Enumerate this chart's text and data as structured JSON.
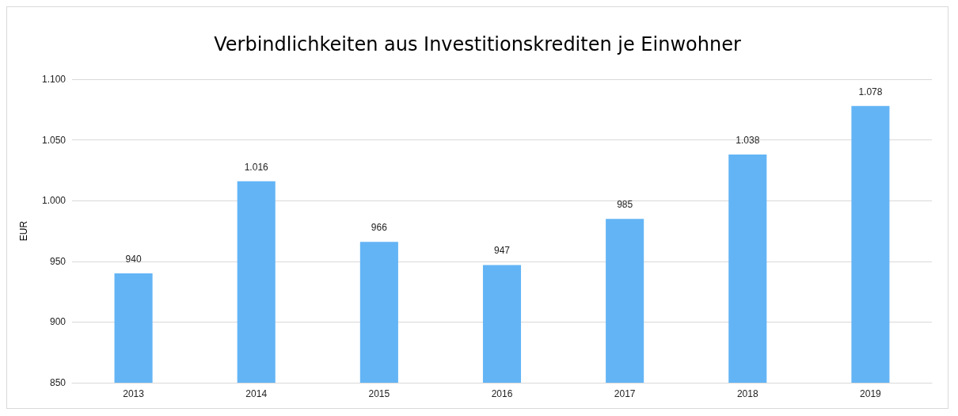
{
  "chart_data": {
    "type": "bar",
    "title": "Verbindlichkeiten aus Investitionskrediten je Einwohner",
    "ylabel": "EUR",
    "categories": [
      "2013",
      "2014",
      "2015",
      "2016",
      "2017",
      "2018",
      "2019"
    ],
    "values": [
      940,
      1016,
      966,
      947,
      985,
      1038,
      1078
    ],
    "value_labels": [
      "940",
      "1.016",
      "966",
      "947",
      "985",
      "1.038",
      "1.078"
    ],
    "color": "#63b4f5",
    "ylim": [
      850,
      1100
    ],
    "yticks": [
      {
        "value": 850,
        "label": "850"
      },
      {
        "value": 900,
        "label": "900"
      },
      {
        "value": 950,
        "label": "950"
      },
      {
        "value": 1000,
        "label": "1.000"
      },
      {
        "value": 1050,
        "label": "1.050"
      },
      {
        "value": 1100,
        "label": "1.100"
      }
    ],
    "grid": "y"
  }
}
